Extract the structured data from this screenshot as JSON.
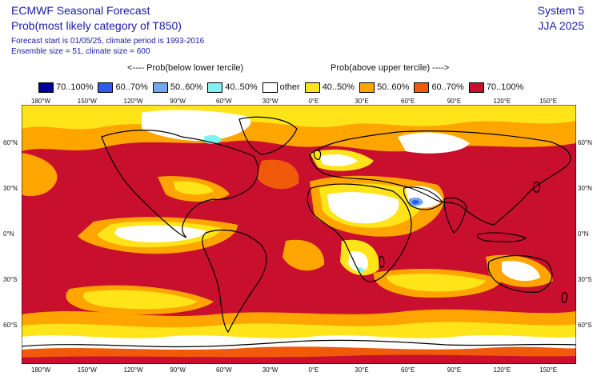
{
  "header": {
    "title": "ECMWF Seasonal Forecast",
    "subtitle": "Prob(most likely category of T850)",
    "forecast_line": "Forecast start is 01/05/25, climate period is 1993-2016",
    "ensemble_line": "Ensemble size = 51, climate size = 600",
    "system": "System 5",
    "season": "JJA 2025"
  },
  "legend": {
    "below_label": "<---- Prob(below lower tercile)",
    "above_label": "Prob(above upper tercile) ---->",
    "items": [
      {
        "label": "70..100%",
        "color": "#00009a"
      },
      {
        "label": "60..70%",
        "color": "#2f5be8"
      },
      {
        "label": "50..60%",
        "color": "#6fa8ef"
      },
      {
        "label": "40..50%",
        "color": "#7ff3ef"
      },
      {
        "label": "other",
        "color": "#ffffff"
      },
      {
        "label": "40..50%",
        "color": "#ffe41a"
      },
      {
        "label": "50..60%",
        "color": "#ffa500"
      },
      {
        "label": "60..70%",
        "color": "#f05a0a"
      },
      {
        "label": "70..100%",
        "color": "#c8102e"
      }
    ]
  },
  "axes": {
    "lon_labels": [
      "180°W",
      "150°W",
      "120°W",
      "90°W",
      "60°W",
      "30°W",
      "0°E",
      "30°E",
      "60°E",
      "90°E",
      "120°E",
      "150°E"
    ],
    "lat_labels": [
      "60°N",
      "30°N",
      "0°N",
      "30°S",
      "60°S"
    ]
  }
}
